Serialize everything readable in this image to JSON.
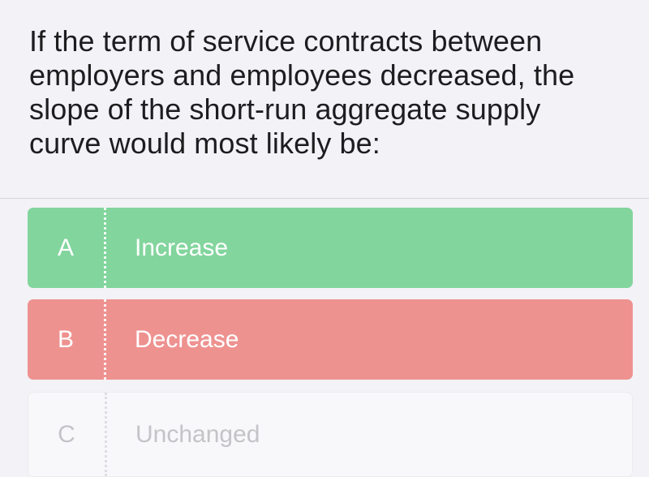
{
  "question": {
    "text": "If the term of service contracts between employers and employees decreased, the slope of the short-run aggregate supply curve would most likely be:"
  },
  "options": [
    {
      "letter": "A",
      "label": "Increase",
      "state": "correct"
    },
    {
      "letter": "B",
      "label": "Decrease",
      "state": "incorrect"
    },
    {
      "letter": "C",
      "label": "Unchanged",
      "state": "neutral"
    }
  ],
  "colors": {
    "background": "#f3f2f7",
    "correct": "#82d59d",
    "incorrect": "#ee9290",
    "neutral": "#f8f8fa",
    "text": "#1d1d1f"
  }
}
